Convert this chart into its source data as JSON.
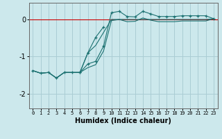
{
  "xlabel": "Humidex (Indice chaleur)",
  "bg_color": "#cce8ec",
  "grid_color": "#aacdd4",
  "line_color": "#1a7070",
  "red_line_color": "#cc0000",
  "xlim": [
    -0.5,
    23.5
  ],
  "ylim": [
    -2.4,
    0.45
  ],
  "yticks": [
    0,
    -1,
    -2
  ],
  "ytick_labels": [
    "0",
    "-1",
    "-2"
  ],
  "xticks": [
    0,
    1,
    2,
    3,
    4,
    5,
    6,
    7,
    8,
    9,
    10,
    11,
    12,
    13,
    14,
    15,
    16,
    17,
    18,
    19,
    20,
    21,
    22,
    23
  ],
  "series": [
    {
      "x": [
        0,
        1,
        2,
        3,
        4,
        5,
        6,
        7,
        8,
        9,
        10,
        11,
        12,
        13,
        14,
        15,
        16,
        17,
        18,
        19,
        20,
        21,
        22,
        23
      ],
      "y": [
        -1.38,
        -1.45,
        -1.43,
        -1.58,
        -1.43,
        -1.43,
        -1.43,
        -1.2,
        -1.13,
        -0.72,
        0.18,
        0.22,
        0.08,
        0.07,
        0.22,
        0.15,
        0.08,
        0.08,
        0.08,
        0.1,
        0.1,
        0.1,
        0.1,
        0.02
      ],
      "marker": "+"
    },
    {
      "x": [
        0,
        1,
        2,
        3,
        4,
        5,
        6,
        7,
        8,
        9,
        10,
        11,
        12,
        13,
        14,
        15,
        16,
        17,
        18,
        19,
        20,
        21,
        22,
        23
      ],
      "y": [
        -1.38,
        -1.45,
        -1.43,
        -1.58,
        -1.43,
        -1.43,
        -1.43,
        -1.3,
        -1.22,
        -0.85,
        -0.03,
        0.0,
        -0.06,
        -0.05,
        0.04,
        -0.02,
        -0.06,
        -0.06,
        -0.06,
        -0.04,
        -0.04,
        -0.04,
        -0.04,
        0.02
      ],
      "marker": null
    },
    {
      "x": [
        0,
        1,
        2,
        3,
        4,
        5,
        6,
        7,
        8,
        9,
        10,
        11,
        12,
        13,
        14,
        15,
        16,
        17,
        18,
        19,
        20,
        21,
        22,
        23
      ],
      "y": [
        -1.38,
        -1.45,
        -1.43,
        -1.58,
        -1.43,
        -1.43,
        -1.43,
        -0.9,
        -0.7,
        -0.35,
        0.0,
        0.0,
        0.0,
        0.0,
        0.0,
        0.0,
        0.0,
        0.0,
        0.0,
        0.0,
        0.0,
        0.0,
        0.0,
        0.02
      ],
      "marker": null
    },
    {
      "x": [
        6,
        7,
        8,
        9
      ],
      "y": [
        -1.43,
        -0.9,
        -0.48,
        -0.2
      ],
      "marker": "+"
    }
  ]
}
